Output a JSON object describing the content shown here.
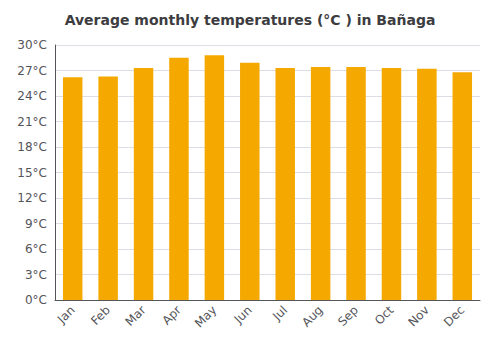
{
  "chart_data": {
    "type": "bar",
    "title": "Average monthly temperatures (°C ) in Bañaga",
    "categories": [
      "Jan",
      "Feb",
      "Mar",
      "Apr",
      "May",
      "Jun",
      "Jul",
      "Aug",
      "Sep",
      "Oct",
      "Nov",
      "Dec"
    ],
    "values": [
      26.2,
      26.3,
      27.3,
      28.5,
      28.8,
      27.9,
      27.3,
      27.4,
      27.4,
      27.3,
      27.2,
      26.8
    ],
    "color": "#F5A800",
    "ylim": [
      0,
      30
    ],
    "yticks": [
      {
        "value": 0,
        "label": "0°C"
      },
      {
        "value": 3,
        "label": "3°C"
      },
      {
        "value": 6,
        "label": "6°C"
      },
      {
        "value": 9,
        "label": "9°C"
      },
      {
        "value": 12,
        "label": "12°C"
      },
      {
        "value": 15,
        "label": "15°C"
      },
      {
        "value": 18,
        "label": "18°C"
      },
      {
        "value": 21,
        "label": "21°C"
      },
      {
        "value": 24,
        "label": "24°C"
      },
      {
        "value": 27,
        "label": "27°C"
      },
      {
        "value": 30,
        "label": "30°C"
      }
    ],
    "grid": true
  }
}
